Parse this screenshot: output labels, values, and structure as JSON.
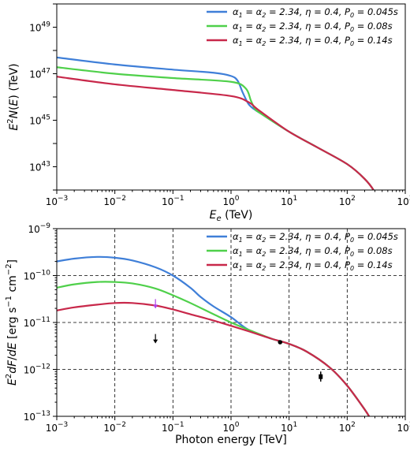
{
  "chart_data": [
    {
      "type": "line",
      "xlabel": "E_e (TeV)",
      "ylabel": "E^2N(E) (TeV)",
      "xscale": "log",
      "yscale": "log",
      "xlim": [
        0.001,
        1000
      ],
      "ylim": [
        1e+42,
        1e+50
      ],
      "x_ticks": [
        "10^-3",
        "10^-2",
        "10^-1",
        "10^0",
        "10^1",
        "10^2",
        "10^3"
      ],
      "y_ticks": [
        "10^43",
        "10^45",
        "10^47",
        "10^49"
      ],
      "grid": false,
      "legend_position": "top-right",
      "series": [
        {
          "name": "α1 = α2 = 2.34, η = 0.4, P0 = 0.045s",
          "color": "#3f7fd8",
          "x": [
            0.001,
            0.01,
            0.1,
            0.5,
            1.0,
            1.3,
            1.6,
            2.0,
            2.5,
            3.2,
            10,
            30,
            100,
            200,
            300,
            400
          ],
          "y": [
            5e+47,
            2.5e+47,
            1.5e+47,
            1.1e+47,
            8e+46,
            5e+46,
            1.5e+46,
            5e+45,
            3e+45,
            2e+45,
            3.2e+44,
            7e+43,
            1.3e+43,
            3e+42,
            8e+41,
            1.5e+41
          ]
        },
        {
          "name": "α1 = α2 = 2.34, η = 0.4, P0 = 0.08s",
          "color": "#4fd04a",
          "x": [
            0.001,
            0.01,
            0.1,
            1.0,
            1.8,
            2.2,
            2.6,
            3.2,
            10,
            30,
            100,
            200,
            300,
            400
          ],
          "y": [
            1.9e+47,
            1e+47,
            6.5e+46,
            4.5e+46,
            2.3e+46,
            7e+45,
            3e+45,
            2e+45,
            3.2e+44,
            7e+43,
            1.3e+43,
            3e+42,
            8e+41,
            1.5e+41
          ]
        },
        {
          "name": "α1 = α2 = 2.34, η = 0.4, P0 = 0.14s",
          "color": "#c8284a",
          "x": [
            0.001,
            0.01,
            0.1,
            1.0,
            2.0,
            2.6,
            3.2,
            10,
            30,
            100,
            200,
            300,
            400
          ],
          "y": [
            7.5e+46,
            3.5e+46,
            2e+46,
            1.1e+46,
            6e+45,
            3.6e+45,
            2.4e+45,
            3.2e+44,
            7e+43,
            1.3e+43,
            3e+42,
            8e+41,
            1.5e+41
          ]
        }
      ]
    },
    {
      "type": "line",
      "xlabel": "Photon energy [TeV]",
      "ylabel": "E^2dF/dE [erg s^-1 cm^-2]",
      "xscale": "log",
      "yscale": "log",
      "xlim": [
        0.001,
        1000
      ],
      "ylim": [
        1e-13,
        1e-09
      ],
      "x_ticks": [
        "10^-3",
        "10^-2",
        "10^-1",
        "10^0",
        "10^1",
        "10^2",
        "10^3"
      ],
      "y_ticks": [
        "10^-13",
        "10^-12",
        "10^-11",
        "10^-10",
        "10^-9"
      ],
      "grid": true,
      "legend_position": "top-right",
      "series": [
        {
          "name": "α1 = α2 = 2.34, η = 0.4, P0 = 0.045s",
          "color": "#3f7fd8",
          "x": [
            0.001,
            0.002,
            0.005,
            0.01,
            0.02,
            0.05,
            0.1,
            0.2,
            0.3,
            0.5,
            1.0,
            2.0,
            5.0,
            10,
            20,
            50,
            100,
            200,
            250
          ],
          "y": [
            2e-10,
            2.3e-10,
            2.5e-10,
            2.4e-10,
            2.1e-10,
            1.5e-10,
            1e-10,
            5.5e-11,
            3.5e-11,
            2.2e-11,
            1.3e-11,
            7e-12,
            4.5e-12,
            3.5e-12,
            2.4e-12,
            1.1e-12,
            4.5e-13,
            1.4e-13,
            9e-14
          ]
        },
        {
          "name": "α1 = α2 = 2.34, η = 0.4, P0 = 0.08s",
          "color": "#4fd04a",
          "x": [
            0.001,
            0.002,
            0.005,
            0.01,
            0.02,
            0.05,
            0.1,
            0.2,
            0.5,
            1.0,
            2.0,
            5.0,
            10,
            20,
            50,
            100,
            200,
            250
          ],
          "y": [
            5.5e-11,
            6.5e-11,
            7.3e-11,
            7.3e-11,
            6.8e-11,
            5.3e-11,
            3.8e-11,
            2.6e-11,
            1.5e-11,
            1e-11,
            7e-12,
            4.5e-12,
            3.5e-12,
            2.4e-12,
            1.1e-12,
            4.5e-13,
            1.4e-13,
            9e-14
          ]
        },
        {
          "name": "α1 = α2 = 2.34, η = 0.4, P0 = 0.14s",
          "color": "#c8284a",
          "x": [
            0.001,
            0.002,
            0.005,
            0.01,
            0.02,
            0.05,
            0.1,
            0.2,
            0.5,
            1.0,
            2.0,
            5.0,
            10,
            20,
            50,
            100,
            200,
            250
          ],
          "y": [
            1.8e-11,
            2.1e-11,
            2.4e-11,
            2.6e-11,
            2.6e-11,
            2.3e-11,
            1.9e-11,
            1.5e-11,
            1.1e-11,
            8.5e-12,
            6.5e-12,
            4.5e-12,
            3.5e-12,
            2.4e-12,
            1.1e-12,
            4.5e-13,
            1.4e-13,
            9e-14
          ]
        }
      ],
      "observations": [
        {
          "x": 0.05,
          "y": 4.5e-12,
          "type": "upper-limit",
          "color": "#000000"
        },
        {
          "x": 0.05,
          "y": 2.5e-11,
          "type": "upper-limit",
          "color": "#b040e8"
        },
        {
          "x": 7.0,
          "y": 3.8e-12,
          "type": "point",
          "color": "#000000"
        },
        {
          "x": 35.0,
          "y": 7e-13,
          "type": "point",
          "color": "#000000",
          "yerr": [
            5.5e-13,
            9e-13
          ]
        }
      ]
    }
  ]
}
